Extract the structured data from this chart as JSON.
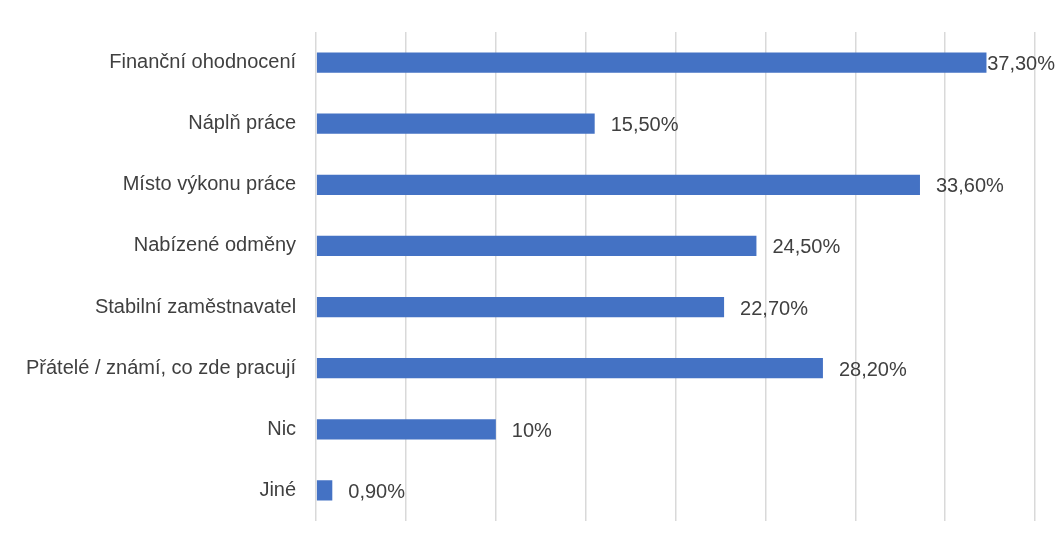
{
  "chart_data": {
    "type": "bar",
    "orientation": "horizontal",
    "categories": [
      "Finanční ohodnocení",
      "Náplň práce",
      "Místo výkonu práce",
      "Nabízené odměny",
      "Stabilní zaměstnavatel",
      "Přátelé / známí, co zde pracují",
      "Nic",
      "Jiné"
    ],
    "values": [
      37.3,
      15.5,
      33.6,
      24.5,
      22.7,
      28.2,
      10,
      0.9
    ],
    "value_labels": [
      "37,30%",
      "15,50%",
      "33,60%",
      "24,50%",
      "22,70%",
      "28,20%",
      "10%",
      "0,90%"
    ],
    "color": "#4472c4",
    "xlim": [
      0,
      40
    ],
    "xticks": [
      {
        "value": 0,
        "label": null
      },
      {
        "value": 5,
        "label": null
      },
      {
        "value": 10,
        "label": null
      },
      {
        "value": 15,
        "label": null
      },
      {
        "value": 20,
        "label": null
      },
      {
        "value": 25,
        "label": null
      },
      {
        "value": 30,
        "label": null
      },
      {
        "value": 35,
        "label": null
      },
      {
        "value": 40,
        "label": null
      }
    ],
    "grid": "x",
    "tick_labels": "y"
  }
}
